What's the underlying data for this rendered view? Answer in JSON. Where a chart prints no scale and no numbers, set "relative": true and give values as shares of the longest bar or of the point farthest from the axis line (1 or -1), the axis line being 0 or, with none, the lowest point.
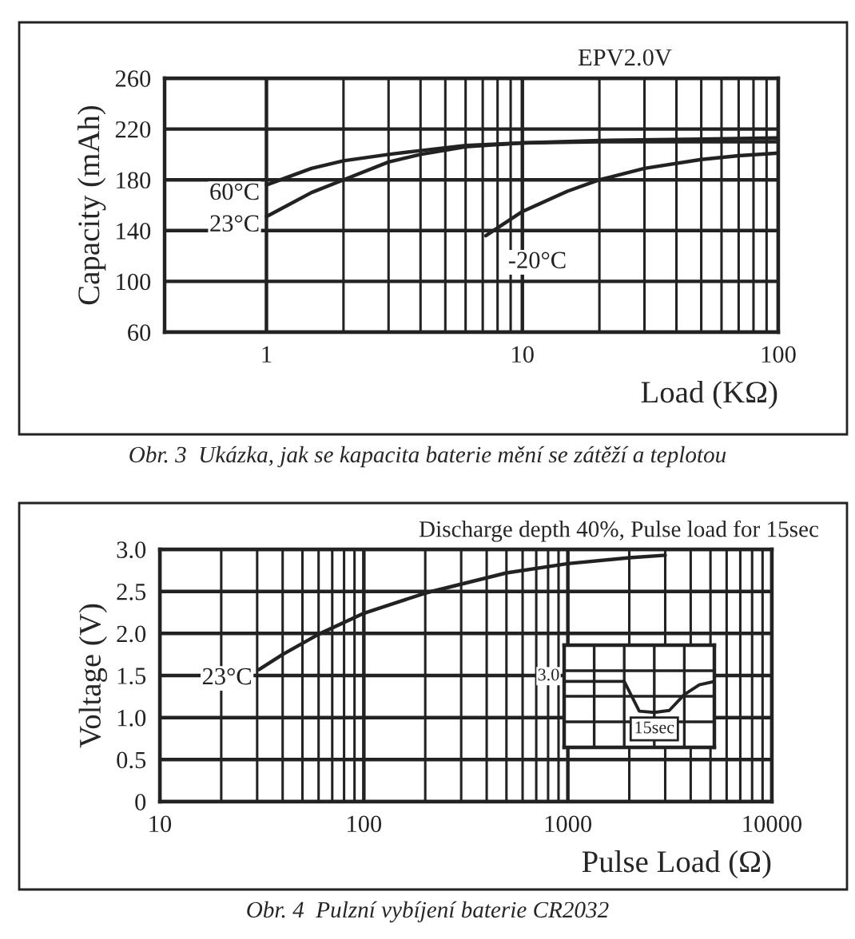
{
  "chart_data": [
    {
      "type": "line",
      "xlabel": "Load (KΩ)",
      "ylabel": "Capacity (mAh)",
      "log": "x",
      "grid": true,
      "legend": false,
      "marker": "none",
      "line_style": "solid",
      "xlim": [
        0.4,
        100
      ],
      "xticks": [
        1,
        10,
        100
      ],
      "ylim": [
        60,
        260
      ],
      "yticks": [
        60,
        100,
        140,
        180,
        220,
        260
      ],
      "series": [
        {
          "name": "60°C",
          "color": "#222222",
          "x": [
            1,
            1.5,
            2,
            3,
            4,
            6,
            10,
            20,
            50,
            100
          ],
          "values": [
            176,
            189,
            195,
            200,
            203,
            207,
            209,
            210,
            210,
            210
          ]
        },
        {
          "name": "23°C",
          "color": "#222222",
          "x": [
            1,
            1.5,
            2,
            3,
            4,
            6,
            10,
            20,
            50,
            100
          ],
          "values": [
            151,
            170,
            180,
            194,
            200,
            206,
            209,
            211,
            212,
            213
          ]
        },
        {
          "name": "-20°C",
          "color": "#222222",
          "x": [
            7.2,
            10,
            15,
            20,
            30,
            50,
            70,
            100
          ],
          "values": [
            136,
            155,
            171,
            180,
            189,
            196,
            199,
            201
          ]
        }
      ],
      "annotations": [
        "EPV2.0V",
        "Obr. 3  Ukázka, jak se kapacita baterie mění se zátěží a teplotou"
      ]
    },
    {
      "type": "line",
      "xlabel": "Pulse Load (Ω)",
      "ylabel": "Voltage (V)",
      "log": "x",
      "grid": true,
      "legend": false,
      "marker": "none",
      "line_style": "solid",
      "xlim": [
        10,
        10000
      ],
      "xticks": [
        10,
        100,
        1000,
        10000
      ],
      "ylim": [
        0,
        3
      ],
      "yticks": [
        0,
        {
          "value": 0.5,
          "label": "0.5"
        },
        {
          "value": 1,
          "label": "1.0"
        },
        {
          "value": 1.5,
          "label": "1.5"
        },
        {
          "value": 2,
          "label": "2.0"
        },
        {
          "value": 2.5,
          "label": "2.5"
        },
        {
          "value": 3,
          "label": "3.0"
        }
      ],
      "series": [
        {
          "name": "23°C",
          "color": "#222222",
          "x": [
            30.6,
            40,
            60,
            100,
            200,
            500,
            1000,
            2000,
            3000
          ],
          "values": [
            1.57,
            1.75,
            1.99,
            2.24,
            2.48,
            2.72,
            2.83,
            2.9,
            2.93
          ]
        }
      ],
      "annotations": [
        "Discharge depth 40%, Pulse load for 15sec",
        "Obr. 4  Pulzní vybíjení baterie CR2032"
      ]
    },
    {
      "type": "line",
      "relative": true,
      "grid": true,
      "legend": false,
      "marker": "none",
      "line_style": "solid",
      "categories": [
        null,
        null,
        null,
        null,
        null,
        null,
        null,
        null,
        null,
        null,
        null
      ],
      "series": [
        {
          "color": "#222222",
          "values": [
            1,
            1,
            1,
            1,
            1,
            0.55,
            0.53,
            0.56,
            0.8,
            0.95,
            1
          ]
        }
      ],
      "annotations": [
        "3.0",
        "15sec"
      ]
    }
  ]
}
